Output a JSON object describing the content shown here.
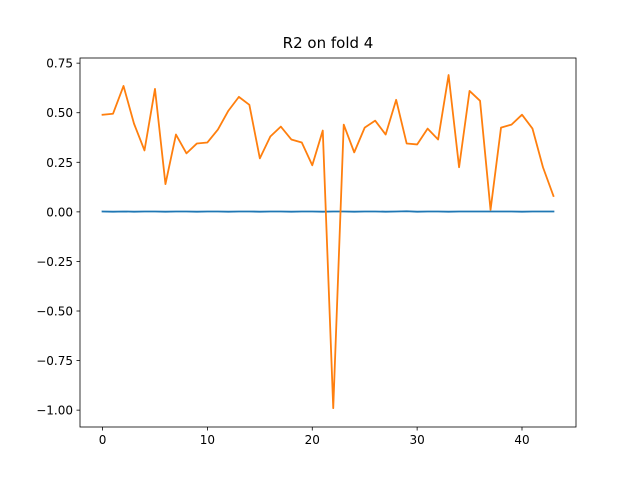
{
  "chart_data": {
    "type": "line",
    "title": "R2 on fold 4",
    "xlabel": "",
    "ylabel": "",
    "xlim": [
      -2.15,
      45.15
    ],
    "ylim": [
      -1.085,
      0.776
    ],
    "xticks": [
      0,
      10,
      20,
      30,
      40
    ],
    "yticks": [
      -1.0,
      -0.75,
      -0.5,
      -0.25,
      0.0,
      0.25,
      0.5,
      0.75
    ],
    "ytick_labels": [
      "−1.00",
      "−0.75",
      "−0.50",
      "−0.25",
      "0.00",
      "0.25",
      "0.50",
      "0.75"
    ],
    "grid": false,
    "legend": "none",
    "series": [
      {
        "color": "#1f77b4",
        "x": [
          0,
          1,
          2,
          3,
          4,
          5,
          6,
          7,
          8,
          9,
          10,
          11,
          12,
          13,
          14,
          15,
          16,
          17,
          18,
          19,
          20,
          21,
          22,
          23,
          24,
          25,
          26,
          27,
          28,
          29,
          30,
          31,
          32,
          33,
          34,
          35,
          36,
          37,
          38,
          39,
          40,
          41,
          42,
          43
        ],
        "values": [
          0.002,
          0.001,
          0.002,
          0.001,
          0.002,
          0.002,
          0.001,
          0.002,
          0.002,
          0.001,
          0.002,
          0.002,
          0.001,
          0.002,
          0.002,
          0.001,
          0.002,
          0.002,
          0.001,
          0.002,
          0.002,
          0.001,
          0.002,
          0.002,
          0.001,
          0.002,
          0.002,
          0.001,
          0.002,
          0.003,
          0.001,
          0.002,
          0.002,
          0.001,
          0.002,
          0.002,
          0.002,
          0.002,
          0.002,
          0.002,
          0.001,
          0.002,
          0.002,
          0.002
        ]
      },
      {
        "color": "#ff7f0e",
        "x": [
          0,
          1,
          2,
          3,
          4,
          5,
          6,
          7,
          8,
          9,
          10,
          11,
          12,
          13,
          14,
          15,
          16,
          17,
          18,
          19,
          20,
          21,
          22,
          23,
          24,
          25,
          26,
          27,
          28,
          29,
          30,
          31,
          32,
          33,
          34,
          35,
          36,
          37,
          38,
          39,
          40,
          41,
          42,
          43
        ],
        "values": [
          0.49,
          0.495,
          0.635,
          0.445,
          0.31,
          0.62,
          0.14,
          0.39,
          0.295,
          0.345,
          0.35,
          0.415,
          0.51,
          0.58,
          0.54,
          0.27,
          0.38,
          0.43,
          0.365,
          0.35,
          0.235,
          0.41,
          -0.99,
          0.44,
          0.3,
          0.425,
          0.46,
          0.39,
          0.565,
          0.345,
          0.34,
          0.42,
          0.365,
          0.69,
          0.225,
          0.61,
          0.56,
          0.01,
          0.425,
          0.44,
          0.49,
          0.42,
          0.225,
          0.08
        ]
      }
    ]
  }
}
